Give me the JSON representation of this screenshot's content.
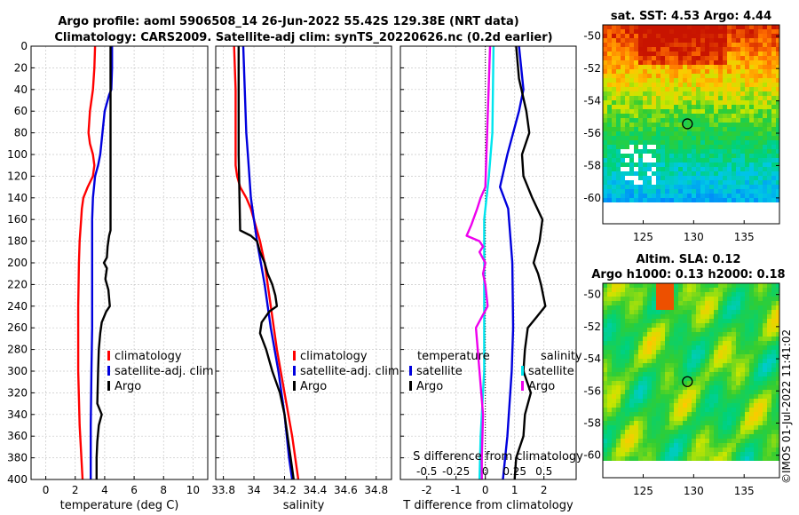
{
  "figure_title": [
    "Argo profile: aoml 5906508_14 26-Jun-2022 55.42S 129.38E (NRT data)",
    "Climatology: CARS2009. Satellite-adj clim: synTS_20220626.nc (0.2d earlier)"
  ],
  "watermark": "©IMOS 01-Jul-2022 11:41:02",
  "colors": {
    "climatology": "#ff0000",
    "satellite": "#0000dd",
    "argo": "#000000",
    "sat_salinity": "#00e5ee",
    "argo_salinity": "#ee00ee"
  },
  "chart_data": [
    {
      "type": "line",
      "name": "temperature-panel",
      "xlabel": "temperature (deg C)",
      "ylabel": "",
      "xlim": [
        -1,
        11
      ],
      "ylim": [
        0,
        400
      ],
      "xticks": [
        0,
        2,
        4,
        6,
        8,
        10
      ],
      "xtick_labels": [
        "0",
        "2",
        "4",
        "6",
        "8",
        "10"
      ],
      "yticks": [
        0,
        20,
        40,
        60,
        80,
        100,
        120,
        140,
        160,
        180,
        200,
        220,
        240,
        260,
        280,
        300,
        320,
        340,
        360,
        380,
        400
      ],
      "ytick_labels": [
        "0",
        "20",
        "40",
        "60",
        "80",
        "100",
        "120",
        "140",
        "160",
        "180",
        "200",
        "220",
        "240",
        "260",
        "280",
        "300",
        "320",
        "340",
        "360",
        "380",
        "400"
      ],
      "grid": true,
      "legend": [
        "climatology",
        "satellite-adj. clim",
        "Argo"
      ],
      "legend_position": "right",
      "series": [
        {
          "name": "climatology",
          "color": "#ff0000",
          "depth": [
            0,
            20,
            40,
            60,
            70,
            80,
            90,
            100,
            110,
            120,
            130,
            140,
            150,
            160,
            180,
            200,
            240,
            300,
            350,
            400
          ],
          "values": [
            3.35,
            3.3,
            3.2,
            3.0,
            2.95,
            2.9,
            3.0,
            3.2,
            3.3,
            3.2,
            2.85,
            2.55,
            2.45,
            2.4,
            2.3,
            2.25,
            2.2,
            2.2,
            2.3,
            2.5
          ]
        },
        {
          "name": "satellite-adj. clim",
          "color": "#0000dd",
          "depth": [
            0,
            20,
            40,
            45,
            60,
            80,
            100,
            110,
            120,
            140,
            160,
            200,
            260,
            300,
            350,
            400
          ],
          "values": [
            4.5,
            4.5,
            4.45,
            4.3,
            4.0,
            3.85,
            3.7,
            3.55,
            3.35,
            3.2,
            3.15,
            3.15,
            3.15,
            3.1,
            3.05,
            3.05
          ]
        },
        {
          "name": "Argo",
          "color": "#000000",
          "depth": [
            0,
            100,
            170,
            175,
            185,
            195,
            200,
            205,
            215,
            225,
            240,
            245,
            255,
            265,
            280,
            300,
            330,
            340,
            350,
            365,
            380,
            400
          ],
          "values": [
            4.4,
            4.4,
            4.4,
            4.3,
            4.2,
            4.15,
            3.95,
            4.15,
            4.05,
            4.25,
            4.35,
            4.1,
            3.8,
            3.7,
            3.6,
            3.55,
            3.5,
            3.8,
            3.6,
            3.5,
            3.45,
            3.45
          ]
        }
      ]
    },
    {
      "type": "line",
      "name": "salinity-panel",
      "xlabel": "salinity",
      "xlim": [
        33.75,
        34.9
      ],
      "ylim": [
        0,
        400
      ],
      "xticks": [
        33.8,
        34.0,
        34.2,
        34.4,
        34.6,
        34.8
      ],
      "xtick_labels": [
        "33.8",
        "34",
        "34.2",
        "34.4",
        "34.6",
        "34.8"
      ],
      "yticks": [
        0,
        20,
        40,
        60,
        80,
        100,
        120,
        140,
        160,
        180,
        200,
        220,
        240,
        260,
        280,
        300,
        320,
        340,
        360,
        380,
        400
      ],
      "grid": true,
      "legend": [
        "climatology",
        "satellite-adj. clim",
        "Argo"
      ],
      "legend_position": "right",
      "series": [
        {
          "name": "climatology",
          "color": "#ff0000",
          "depth": [
            0,
            40,
            80,
            110,
            120,
            130,
            140,
            150,
            160,
            180,
            200,
            240,
            280,
            320,
            360,
            400
          ],
          "values": [
            33.87,
            33.88,
            33.88,
            33.88,
            33.89,
            33.91,
            33.95,
            33.98,
            34.0,
            34.04,
            34.07,
            34.11,
            34.15,
            34.2,
            34.25,
            34.29
          ]
        },
        {
          "name": "satellite-adj. clim",
          "color": "#0000dd",
          "depth": [
            0,
            40,
            80,
            100,
            140,
            180,
            220,
            260,
            300,
            340,
            380,
            400
          ],
          "values": [
            33.93,
            33.94,
            33.95,
            33.96,
            33.98,
            34.02,
            34.07,
            34.11,
            34.16,
            34.2,
            34.23,
            34.25
          ]
        },
        {
          "name": "Argo",
          "color": "#000000",
          "depth": [
            0,
            100,
            170,
            175,
            180,
            190,
            200,
            210,
            220,
            230,
            240,
            245,
            255,
            265,
            280,
            300,
            320,
            340,
            360,
            380,
            400
          ],
          "values": [
            33.9,
            33.9,
            33.91,
            33.98,
            34.02,
            34.04,
            34.07,
            34.09,
            34.12,
            34.14,
            34.15,
            34.1,
            34.05,
            34.04,
            34.08,
            34.12,
            34.17,
            34.2,
            34.22,
            34.24,
            34.26
          ]
        }
      ]
    },
    {
      "type": "line",
      "name": "difference-panel",
      "xlabel": "T difference from climatology",
      "top_label": "S difference from climatology",
      "xlim": [
        -2.9,
        3.1
      ],
      "ylim": [
        0,
        400
      ],
      "xticks": [
        -2,
        -1,
        0,
        1,
        2
      ],
      "xtick_labels": [
        "-2",
        "-1",
        "0",
        "1",
        "2"
      ],
      "top_ticks": [
        -0.5,
        -0.25,
        0,
        0.25,
        0.5
      ],
      "top_tick_labels": [
        "-0.5",
        "-0.25",
        "0",
        "0.25",
        "0.5"
      ],
      "yticks": [
        0,
        20,
        40,
        60,
        80,
        100,
        120,
        140,
        160,
        180,
        200,
        220,
        240,
        260,
        280,
        300,
        320,
        340,
        360,
        380,
        400
      ],
      "grid": true,
      "legend_temperature": {
        "title": "temperature",
        "entries": [
          "satellite",
          "Argo"
        ]
      },
      "legend_salinity": {
        "title": "salinity",
        "entries": [
          "satellite",
          "Argo"
        ]
      },
      "series": [
        {
          "name": "T satellite",
          "color": "#0000dd",
          "depth": [
            0,
            40,
            60,
            100,
            130,
            150,
            200,
            260,
            300,
            360,
            400
          ],
          "values": [
            1.15,
            1.3,
            1.15,
            0.75,
            0.5,
            0.78,
            0.92,
            0.95,
            0.9,
            0.75,
            0.6
          ]
        },
        {
          "name": "T Argo",
          "color": "#000000",
          "depth": [
            0,
            30,
            60,
            80,
            100,
            120,
            140,
            160,
            180,
            200,
            210,
            220,
            240,
            250,
            260,
            280,
            300,
            320,
            340,
            360,
            380,
            400
          ],
          "values": [
            1.05,
            1.15,
            1.4,
            1.5,
            1.25,
            1.3,
            1.6,
            1.95,
            1.85,
            1.65,
            1.8,
            1.9,
            2.05,
            1.75,
            1.45,
            1.35,
            1.3,
            1.55,
            1.35,
            1.3,
            1.05,
            1.0
          ]
        },
        {
          "name": "S satellite",
          "color": "#00e5ee",
          "depth": [
            0,
            80,
            120,
            160,
            200,
            260,
            300,
            360,
            400
          ],
          "values": [
            0.07,
            0.06,
            0.03,
            -0.01,
            -0.01,
            -0.01,
            -0.01,
            -0.04,
            -0.05
          ]
        },
        {
          "name": "S Argo",
          "color": "#ee00ee",
          "depth": [
            0,
            130,
            140,
            150,
            165,
            175,
            180,
            185,
            190,
            200,
            210,
            220,
            240,
            260,
            300,
            340,
            380,
            400
          ],
          "values": [
            0.04,
            0.0,
            -0.04,
            -0.07,
            -0.12,
            -0.16,
            -0.05,
            -0.02,
            -0.05,
            0.0,
            -0.02,
            0.0,
            0.02,
            -0.08,
            -0.05,
            -0.02,
            -0.03,
            -0.03
          ]
        }
      ]
    },
    {
      "type": "heatmap",
      "name": "sst-map",
      "title": "sat. SST: 4.53 Argo: 4.44",
      "xlim": [
        121,
        138.5
      ],
      "ylim": [
        -61.6,
        -49.3
      ],
      "xticks": [
        125,
        130,
        135
      ],
      "xtick_labels": [
        "125",
        "130",
        "135"
      ],
      "yticks": [
        -50,
        -52,
        -54,
        -56,
        -58,
        -60
      ],
      "ytick_labels": [
        "-50",
        "-52",
        "-54",
        "-56",
        "-58",
        "-60"
      ],
      "marker": {
        "lon": 129.38,
        "lat": -55.42
      }
    },
    {
      "type": "heatmap",
      "name": "sla-map",
      "title": [
        "Altim. SLA: 0.12",
        "Argo h1000: 0.13 h2000: 0.18"
      ],
      "xlim": [
        121,
        138.5
      ],
      "ylim": [
        -61.4,
        -49.3
      ],
      "xticks": [
        125,
        130,
        135
      ],
      "xtick_labels": [
        "125",
        "130",
        "135"
      ],
      "yticks": [
        -50,
        -52,
        -54,
        -56,
        -58,
        -60
      ],
      "ytick_labels": [
        "-50",
        "-52",
        "-54",
        "-56",
        "-58",
        "-60"
      ],
      "marker": {
        "lon": 129.38,
        "lat": -55.42
      }
    }
  ]
}
